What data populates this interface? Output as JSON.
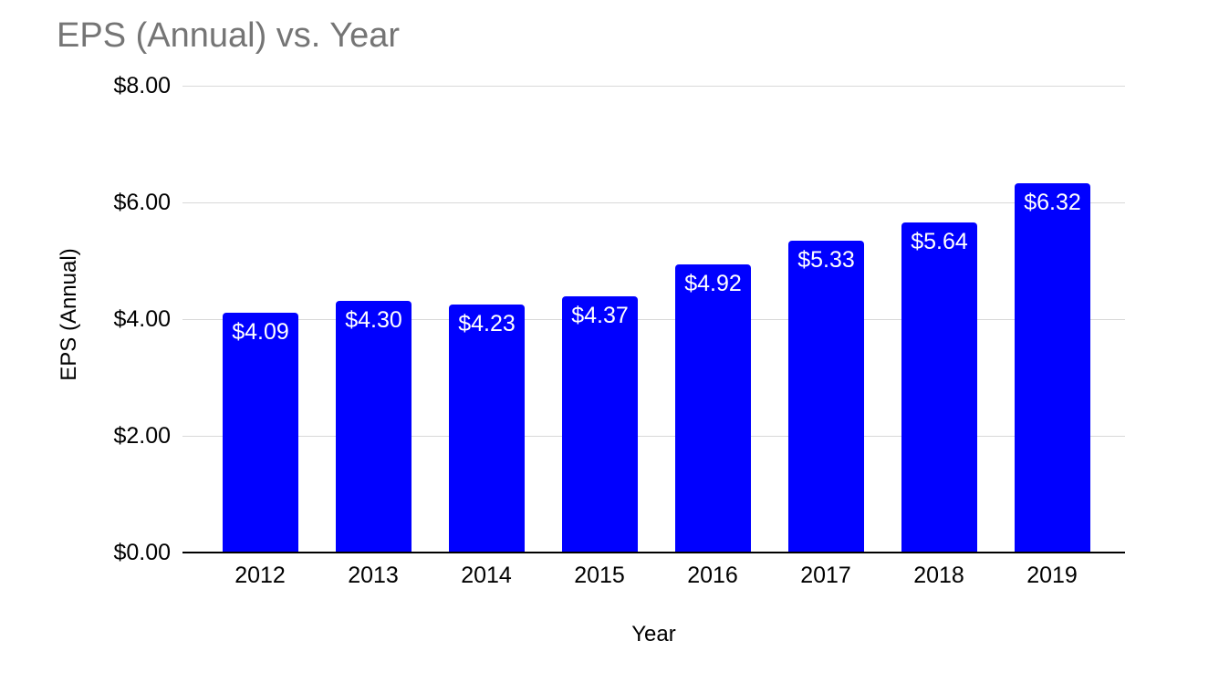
{
  "chart_data": {
    "type": "bar",
    "title": "EPS (Annual) vs. Year",
    "xlabel": "Year",
    "ylabel": "EPS (Annual)",
    "categories": [
      "2012",
      "2013",
      "2014",
      "2015",
      "2016",
      "2017",
      "2018",
      "2019"
    ],
    "values": [
      4.09,
      4.3,
      4.23,
      4.37,
      4.92,
      5.33,
      5.64,
      6.32
    ],
    "value_labels": [
      "$4.09",
      "$4.30",
      "$4.23",
      "$4.37",
      "$4.92",
      "$5.33",
      "$5.64",
      "$6.32"
    ],
    "series_name": "EPS (Annual)",
    "y_ticks": [
      {
        "value": 0,
        "label": "$0.00"
      },
      {
        "value": 2,
        "label": "$2.00"
      },
      {
        "value": 4,
        "label": "$4.00"
      },
      {
        "value": 6,
        "label": "$6.00"
      },
      {
        "value": 8,
        "label": "$8.00"
      }
    ],
    "ylim": [
      0,
      8
    ],
    "grid": true,
    "legend_position": "none",
    "colors": {
      "bar": "#0000ff",
      "bar_label_text": "#ffffff",
      "title_text": "#757575",
      "axis_label_text": "#000000",
      "gridline": "#d9d9d9",
      "axis_line": "#000000",
      "background": "#ffffff"
    }
  }
}
